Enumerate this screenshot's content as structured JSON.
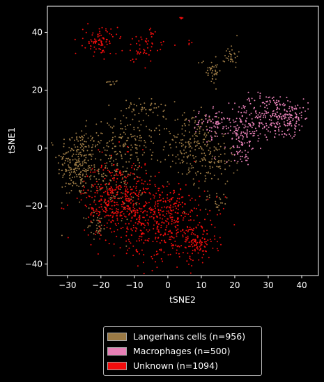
{
  "chart_data": {
    "type": "scatter",
    "title": "",
    "xlabel": "tSNE2",
    "ylabel": "tSNE1",
    "xlim": [
      -36,
      45
    ],
    "ylim": [
      -44,
      49
    ],
    "xticks": [
      -30,
      -20,
      -10,
      0,
      10,
      20,
      30,
      40
    ],
    "yticks": [
      -40,
      -20,
      0,
      20,
      40
    ],
    "grid": false,
    "legend_position": "bottom-center",
    "background": "#000000",
    "series": [
      {
        "name": "Langerhans cells (n=956)",
        "color": "#9b7a45",
        "n": 956,
        "clusters": [
          {
            "cx": -27,
            "cy": -5,
            "sx": 3,
            "sy": 6,
            "n": 230
          },
          {
            "cx": -17,
            "cy": -8,
            "sx": 5,
            "sy": 9,
            "n": 190
          },
          {
            "cx": -10,
            "cy": 2,
            "sx": 6,
            "sy": 4,
            "n": 110
          },
          {
            "cx": -7,
            "cy": 14,
            "sx": 3,
            "sy": 1.5,
            "n": 45
          },
          {
            "cx": 7,
            "cy": 1,
            "sx": 4,
            "sy": 6,
            "n": 170
          },
          {
            "cx": 14,
            "cy": -5,
            "sx": 3,
            "sy": 4,
            "n": 80
          },
          {
            "cx": 13,
            "cy": 27,
            "sx": 1.5,
            "sy": 2.5,
            "n": 40
          },
          {
            "cx": 19,
            "cy": 32,
            "sx": 1,
            "sy": 2,
            "n": 30
          },
          {
            "cx": -17,
            "cy": 23,
            "sx": 0.8,
            "sy": 0.8,
            "n": 10
          },
          {
            "cx": -21,
            "cy": -27,
            "sx": 1.5,
            "sy": 2,
            "n": 30
          },
          {
            "cx": 15,
            "cy": -18,
            "sx": 2,
            "sy": 2,
            "n": 21
          }
        ]
      },
      {
        "name": "Macrophages (n=500)",
        "color": "#e57fb5",
        "n": 500,
        "clusters": [
          {
            "cx": 30,
            "cy": 11,
            "sx": 5,
            "sy": 4,
            "n": 210
          },
          {
            "cx": 37,
            "cy": 11,
            "sx": 2.5,
            "sy": 3,
            "n": 90
          },
          {
            "cx": 22,
            "cy": 5,
            "sx": 2.5,
            "sy": 4,
            "n": 110
          },
          {
            "cx": 13,
            "cy": 8,
            "sx": 3,
            "sy": 2.5,
            "n": 70
          },
          {
            "cx": 23,
            "cy": -2,
            "sx": 1.5,
            "sy": 1.5,
            "n": 20
          }
        ]
      },
      {
        "name": "Unknown (n=1094)",
        "color": "#f20d0d",
        "n": 1094,
        "clusters": [
          {
            "cx": -15,
            "cy": -18,
            "sx": 5,
            "sy": 7,
            "n": 430
          },
          {
            "cx": 0,
            "cy": -25,
            "sx": 6,
            "sy": 7,
            "n": 420
          },
          {
            "cx": 9,
            "cy": -33,
            "sx": 3,
            "sy": 3,
            "n": 90
          },
          {
            "cx": -20,
            "cy": 37,
            "sx": 2.5,
            "sy": 2.5,
            "n": 85
          },
          {
            "cx": -7,
            "cy": 35,
            "sx": 3,
            "sy": 3,
            "n": 55
          },
          {
            "cx": 4,
            "cy": 45,
            "sx": 0.5,
            "sy": 0.2,
            "n": 8
          },
          {
            "cx": 6.5,
            "cy": 36,
            "sx": 0.3,
            "sy": 0.6,
            "n": 4
          },
          {
            "cx": -31,
            "cy": -21,
            "sx": 0.6,
            "sy": 0.6,
            "n": 2
          }
        ]
      }
    ]
  }
}
